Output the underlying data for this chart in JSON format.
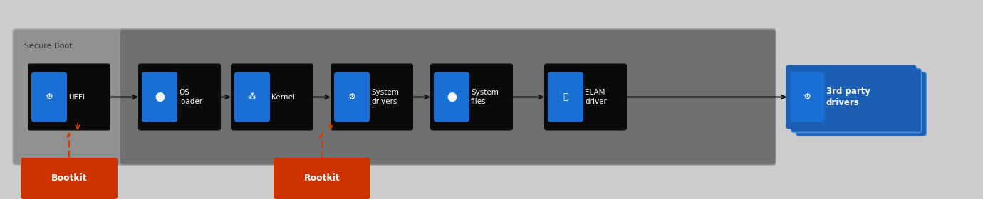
{
  "bg_color": "#cccccc",
  "secure_boot_box_color": "#909090",
  "main_box_color": "#707070",
  "node_bg_color": "#0a0a0a",
  "icon_bg_color": "#1a6fd4",
  "blue_box_color": "#1a5fb4",
  "blue_box_edge_color": "#5599dd",
  "red_box_color": "#cc3300",
  "white": "#ffffff",
  "dark_text": "#333333",
  "secure_boot_label": "Secure Boot",
  "nodes": [
    "UEFI",
    "OS\nloader",
    "Kernel",
    "System\ndrivers",
    "System\nfiles",
    "ELAM\ndriver"
  ],
  "node_icon_chars": [
    "⚙",
    "●",
    "✶",
    "⚙",
    "●",
    "⛨"
  ],
  "third_party_label": "3rd party\ndrivers",
  "bootkit_label": "Bootkit",
  "rootkit_label": "Rootkit",
  "arrow_color": "#111111",
  "dashed_arrow_color": "#cc4400",
  "figsize": [
    13.8,
    2.8
  ],
  "dpi": 100,
  "xlim": [
    0,
    13.8
  ],
  "ylim": [
    0,
    2.8
  ]
}
